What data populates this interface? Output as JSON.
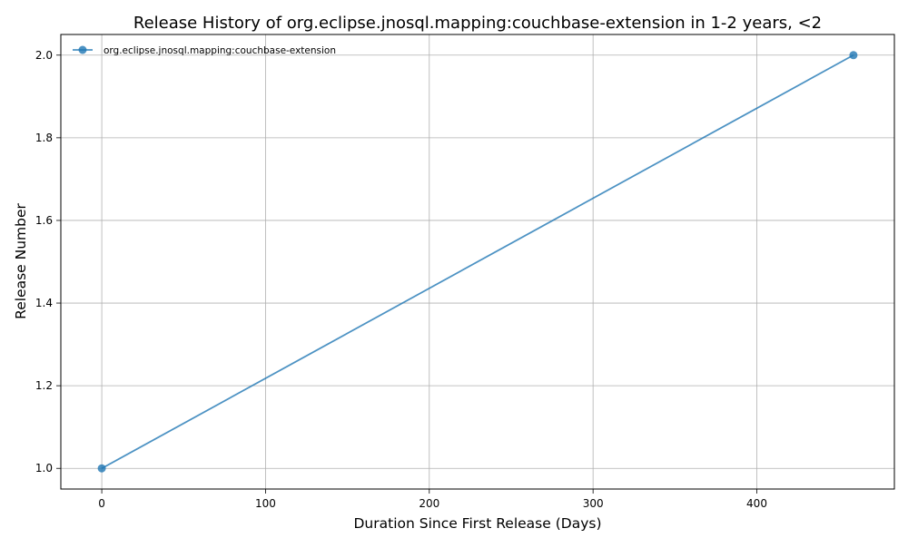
{
  "chart_data": {
    "type": "line",
    "title": "Release History of org.eclipse.jnosql.mapping:couchbase-extension in 1-2 years, <2",
    "xlabel": "Duration Since First Release (Days)",
    "ylabel": "Release Number",
    "xlim": [
      -25,
      484
    ],
    "ylim": [
      0.95,
      2.05
    ],
    "xticks": [
      0,
      100,
      200,
      300,
      400
    ],
    "yticks": [
      1.0,
      1.2,
      1.4,
      1.6,
      1.8,
      2.0
    ],
    "xtick_labels": [
      "0",
      "100",
      "200",
      "300",
      "400"
    ],
    "ytick_labels": [
      "1.0",
      "1.2",
      "1.4",
      "1.6",
      "1.8",
      "2.0"
    ],
    "grid": true,
    "legend_position": "top-left",
    "series": [
      {
        "name": "org.eclipse.jnosql.mapping:couchbase-extension",
        "color": "#1f77b4",
        "marker": "circle",
        "points": [
          {
            "x": 0,
            "y": 1
          },
          {
            "x": 459,
            "y": 2
          }
        ]
      }
    ]
  }
}
